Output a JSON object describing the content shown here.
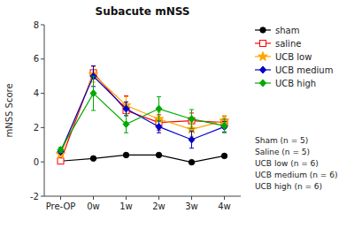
{
  "chart_data": {
    "type": "line",
    "title": "Subacute mNSS",
    "y_label": "mNSS Score",
    "categories": [
      "Pre-OP",
      "0w",
      "1w",
      "2w",
      "3w",
      "4w"
    ],
    "ylim": [
      -2,
      8
    ],
    "yticks": [
      -2,
      0,
      2,
      4,
      6,
      8
    ],
    "grid": false,
    "legend": "right",
    "series": [
      {
        "name": "sham",
        "color": "#000000",
        "marker": "circle",
        "values": [
          0.05,
          0.2,
          0.4,
          0.4,
          -0.02,
          0.35
        ],
        "errors": [
          0.05,
          0.1,
          0.1,
          0.1,
          0.05,
          0.1
        ]
      },
      {
        "name": "saline",
        "color": "#FF0000",
        "marker": "square-open",
        "values": [
          0.05,
          5.2,
          3.0,
          2.3,
          2.4,
          2.3
        ],
        "errors": [
          0.05,
          0.35,
          0.85,
          0.45,
          0.45,
          0.35
        ]
      },
      {
        "name": "UCB low",
        "color": "#FFA500",
        "marker": "star",
        "values": [
          0.45,
          5.1,
          3.3,
          2.5,
          1.9,
          2.4
        ],
        "errors": [
          0.1,
          0.45,
          0.5,
          0.4,
          0.4,
          0.3
        ]
      },
      {
        "name": "UCB medium",
        "color": "#0000CC",
        "marker": "diamond",
        "values": [
          0.6,
          5.0,
          3.1,
          2.05,
          1.3,
          2.05
        ],
        "errors": [
          0.1,
          0.6,
          0.4,
          0.35,
          0.5,
          0.3
        ]
      },
      {
        "name": "UCB high",
        "color": "#00AA00",
        "marker": "diamond",
        "values": [
          0.7,
          4.0,
          2.2,
          3.1,
          2.5,
          2.1
        ],
        "errors": [
          0.15,
          1.0,
          0.5,
          0.7,
          0.55,
          0.4
        ]
      }
    ],
    "annotations": [
      "Sham (n = 5)",
      "Saline (n = 5)",
      "UCB low (n = 6)",
      "UCB medium (n = 6)",
      "UCB high (n = 6)"
    ]
  }
}
